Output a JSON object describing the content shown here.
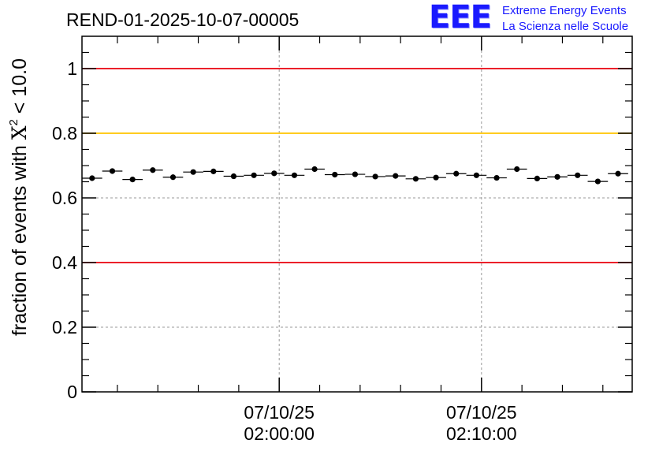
{
  "chart_data": {
    "type": "scatter",
    "title": "REND-01-2025-10-07-00005",
    "ylabel_prefix": "fraction of events with ",
    "ylabel_symbol": "X",
    "ylabel_superscript": "2",
    "ylabel_suffix": " < 10.0",
    "xlabel": "",
    "ylim": [
      0,
      1.1
    ],
    "yticks": [
      {
        "value": 0,
        "label": "0"
      },
      {
        "value": 0.2,
        "label": "0.2"
      },
      {
        "value": 0.4,
        "label": "0.4"
      },
      {
        "value": 0.6,
        "label": "0.6"
      },
      {
        "value": 0.8,
        "label": "0.8"
      },
      {
        "value": 1.0,
        "label": "1"
      }
    ],
    "xlim_minutes": [
      0,
      27.2
    ],
    "xticks": [
      {
        "minute": 9.75,
        "date": "07/10/25",
        "time": "02:00:00"
      },
      {
        "minute": 19.75,
        "date": "07/10/25",
        "time": "02:10:00"
      }
    ],
    "minor_xtick_minutes": [
      1.75,
      3.75,
      5.75,
      7.75,
      11.75,
      13.75,
      15.75,
      17.75,
      21.75,
      23.75,
      25.75
    ],
    "grid": true,
    "reference_lines": [
      {
        "value": 1.0,
        "color": "#e8000b"
      },
      {
        "value": 0.8,
        "color": "#ffc400"
      },
      {
        "value": 0.4,
        "color": "#e8000b"
      }
    ],
    "bin_width_minutes": 1.0,
    "series": [
      {
        "name": "fraction",
        "x_minutes": [
          0.5,
          1.5,
          2.5,
          3.5,
          4.5,
          5.5,
          6.5,
          7.5,
          8.5,
          9.5,
          10.5,
          11.5,
          12.5,
          13.5,
          14.5,
          15.5,
          16.5,
          17.5,
          18.5,
          19.5,
          20.5,
          21.5,
          22.5,
          23.5,
          24.5,
          25.5,
          26.5
        ],
        "values": [
          0.661,
          0.683,
          0.657,
          0.686,
          0.664,
          0.68,
          0.682,
          0.667,
          0.67,
          0.676,
          0.67,
          0.689,
          0.672,
          0.673,
          0.666,
          0.668,
          0.659,
          0.663,
          0.675,
          0.67,
          0.662,
          0.689,
          0.66,
          0.665,
          0.67,
          0.651,
          0.675
        ],
        "error": 0.006
      }
    ]
  },
  "logo": {
    "mark": "EEE",
    "line1": "Extreme Energy Events",
    "line2": "La Scienza nelle Scuole",
    "color": "#1a1aff"
  }
}
